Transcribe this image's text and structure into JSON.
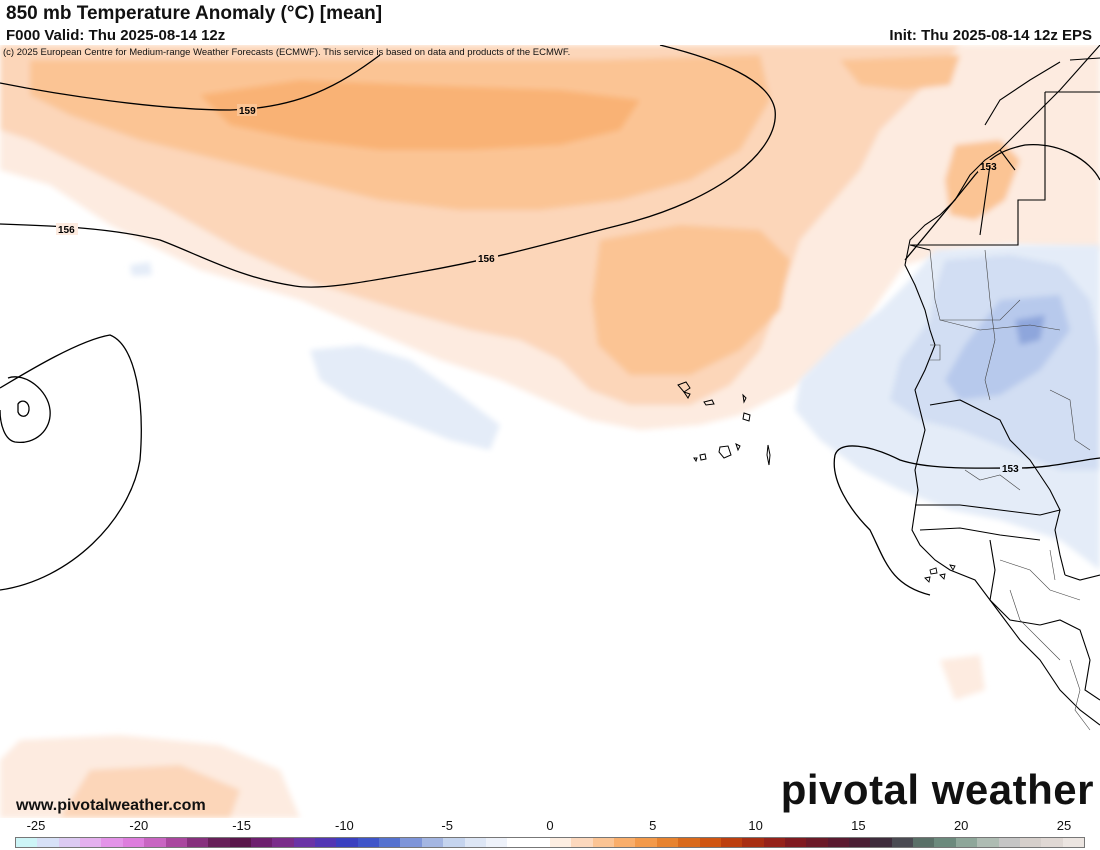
{
  "header": {
    "title": "850 mb Temperature Anomaly (°C) [mean]",
    "valid": "F000 Valid: Thu 2025-08-14 12z",
    "init": "Init: Thu 2025-08-14 12z EPS"
  },
  "map": {
    "copyright": "(c) 2025 European Centre for Medium-range Weather Forecasts (ECMWF). This service is based on data and products of the ECMWF.",
    "contours": [
      {
        "label": "159"
      },
      {
        "label": "156"
      },
      {
        "label": "156"
      },
      {
        "label": "153"
      },
      {
        "label": "153"
      }
    ]
  },
  "footer": {
    "website": "www.pivotalweather.com",
    "brand": "pivotal weather"
  },
  "colorbar": {
    "ticks": [
      "-25",
      "-20",
      "-15",
      "-10",
      "-5",
      "0",
      "5",
      "10",
      "15",
      "20",
      "25"
    ],
    "colors": [
      "#cdf5f7",
      "#d7e1f7",
      "#dccaf2",
      "#e4b0ee",
      "#e393e8",
      "#dd7ddd",
      "#c865c2",
      "#a9479f",
      "#86307d",
      "#672059",
      "#59164a",
      "#6d1f6e",
      "#7a2c8a",
      "#6a33a6",
      "#5236b4",
      "#3a40c0",
      "#3f55c9",
      "#5572cf",
      "#7e95d9",
      "#a4b6e2",
      "#c5d4ee",
      "#dde6f5",
      "#eef2fa",
      "#ffffff",
      "#ffffff",
      "#fdeee2",
      "#fcd8bd",
      "#fbc494",
      "#f9ae6b",
      "#f39a4a",
      "#e7832f",
      "#d96a1c",
      "#cf5512",
      "#bc3f0f",
      "#a82e12",
      "#95221a",
      "#7f1a20",
      "#6b1a28",
      "#5a1a30",
      "#4a1f34",
      "#3e2c3c",
      "#4a4a52",
      "#5a7068",
      "#6c8a7d",
      "#8ea79a",
      "#aebcb3",
      "#c5c5c5",
      "#d6cfcb",
      "#e0d8d4",
      "#ece5e1"
    ]
  }
}
